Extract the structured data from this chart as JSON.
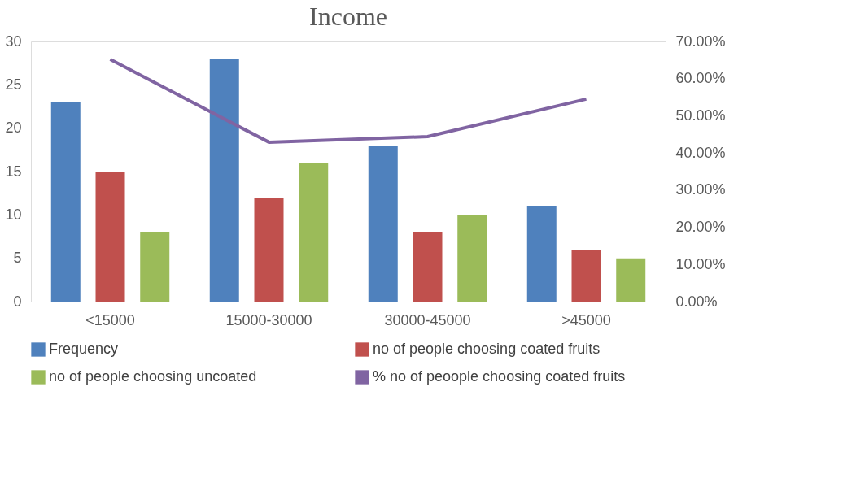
{
  "chart_data": {
    "type": "bar",
    "title": "Income",
    "categories": [
      "<15000",
      "15000-30000",
      "30000-45000",
      ">45000"
    ],
    "series": [
      {
        "name": "Frequency",
        "color": "#4f81bd",
        "values": [
          23,
          28,
          18,
          11
        ]
      },
      {
        "name": "no of people choosing coated fruits",
        "color": "#c0504d",
        "values": [
          15,
          12,
          8,
          6
        ]
      },
      {
        "name": "no of people choosing uncoated",
        "color": "#9bbb59",
        "values": [
          8,
          16,
          10,
          5
        ]
      },
      {
        "name": "% no of peoople choosing coated fruits",
        "color": "#8064a2",
        "type": "line",
        "axis": "y2",
        "values": [
          65.2,
          42.9,
          44.4,
          54.5
        ]
      }
    ],
    "ylim": [
      0,
      30
    ],
    "yticks": [
      0,
      5,
      10,
      15,
      20,
      25,
      30
    ],
    "y2lim": [
      0,
      70
    ],
    "y2ticks": [
      {
        "value": 0,
        "label": "0.00%"
      },
      {
        "value": 10,
        "label": "10.00%"
      },
      {
        "value": 20,
        "label": "20.00%"
      },
      {
        "value": 30,
        "label": "30.00%"
      },
      {
        "value": 40,
        "label": "40.00%"
      },
      {
        "value": 50,
        "label": "50.00%"
      },
      {
        "value": 60,
        "label": "60.00%"
      },
      {
        "value": 70,
        "label": "70.00%"
      }
    ],
    "grid": false,
    "legend": "bottom",
    "marker": "none",
    "line_style": "solid"
  }
}
